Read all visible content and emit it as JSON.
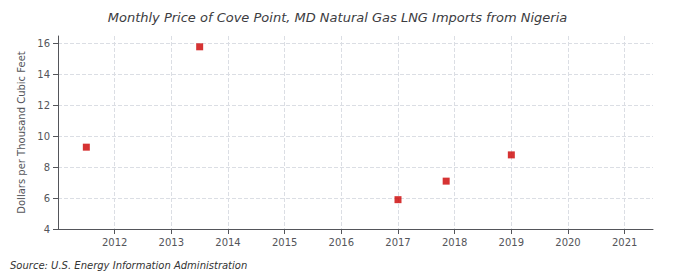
{
  "chart_data": {
    "type": "scatter",
    "title": "Monthly Price of Cove Point, MD Natural Gas LNG Imports from Nigeria",
    "ylabel": "Dollars per Thousand Cubic Feet",
    "source": "Source: U.S. Energy Information Administration",
    "x": [
      2011.5,
      2013.5,
      2017.0,
      2017.85,
      2019.0
    ],
    "values": [
      9.3,
      15.8,
      5.9,
      7.1,
      8.8
    ],
    "color": "#cc0000",
    "marker": "square",
    "xlim": [
      2011.0,
      2021.5
    ],
    "ylim": [
      4,
      16.5
    ],
    "xticks": [
      2012,
      2013,
      2014,
      2015,
      2016,
      2017,
      2018,
      2019,
      2020,
      2021
    ],
    "yticks": [
      4,
      6,
      8,
      10,
      12,
      14,
      16
    ],
    "grid": true
  }
}
